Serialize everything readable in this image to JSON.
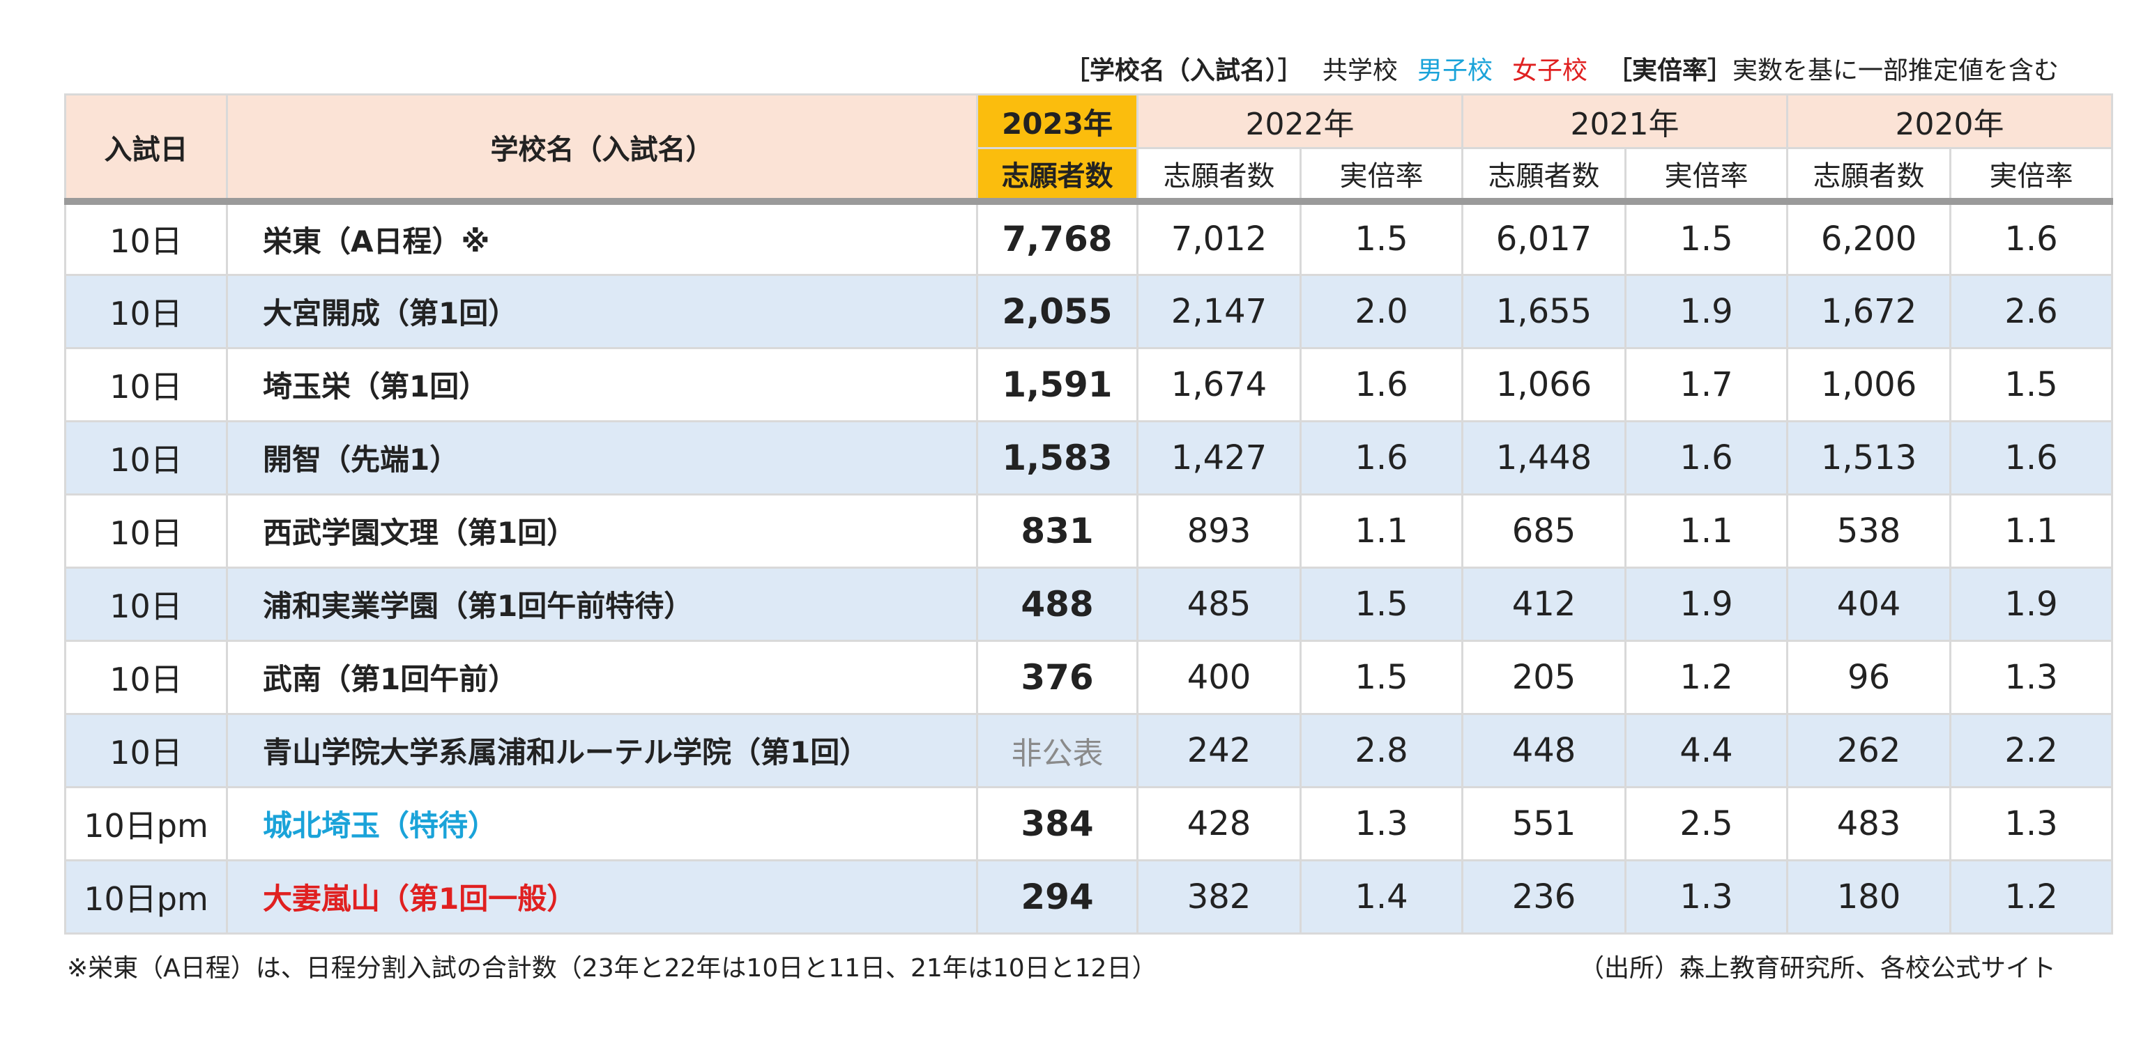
{
  "legend": {
    "school_name_label": "［学校名（入試名）］",
    "coed": "共学校",
    "boys": "男子校",
    "girls": "女子校",
    "ratio_label": "［実倍率］",
    "ratio_note": "実数を基に一部推定値を含む"
  },
  "header": {
    "date": "入試日",
    "school": "学校名（入試名）",
    "y2023": "2023年",
    "y2022": "2022年",
    "y2021": "2021年",
    "y2020": "2020年",
    "applicants": "志願者数",
    "ratio": "実倍率"
  },
  "rows": [
    {
      "date": "10日",
      "name": "栄東（A日程）※",
      "type": "coed",
      "a2023": "7,768",
      "a2022": "7,012",
      "r2022": "1.5",
      "a2021": "6,017",
      "r2021": "1.5",
      "a2020": "6,200",
      "r2020": "1.6"
    },
    {
      "date": "10日",
      "name": "大宮開成（第1回）",
      "type": "coed",
      "a2023": "2,055",
      "a2022": "2,147",
      "r2022": "2.0",
      "a2021": "1,655",
      "r2021": "1.9",
      "a2020": "1,672",
      "r2020": "2.6"
    },
    {
      "date": "10日",
      "name": "埼玉栄（第1回）",
      "type": "coed",
      "a2023": "1,591",
      "a2022": "1,674",
      "r2022": "1.6",
      "a2021": "1,066",
      "r2021": "1.7",
      "a2020": "1,006",
      "r2020": "1.5"
    },
    {
      "date": "10日",
      "name": "開智（先端1）",
      "type": "coed",
      "a2023": "1,583",
      "a2022": "1,427",
      "r2022": "1.6",
      "a2021": "1,448",
      "r2021": "1.6",
      "a2020": "1,513",
      "r2020": "1.6"
    },
    {
      "date": "10日",
      "name": "西武学園文理（第1回）",
      "type": "coed",
      "a2023": "831",
      "a2022": "893",
      "r2022": "1.1",
      "a2021": "685",
      "r2021": "1.1",
      "a2020": "538",
      "r2020": "1.1"
    },
    {
      "date": "10日",
      "name": "浦和実業学園（第1回午前特待）",
      "type": "coed",
      "a2023": "488",
      "a2022": "485",
      "r2022": "1.5",
      "a2021": "412",
      "r2021": "1.9",
      "a2020": "404",
      "r2020": "1.9"
    },
    {
      "date": "10日",
      "name": "武南（第1回午前）",
      "type": "coed",
      "a2023": "376",
      "a2022": "400",
      "r2022": "1.5",
      "a2021": "205",
      "r2021": "1.2",
      "a2020": "96",
      "r2020": "1.3"
    },
    {
      "date": "10日",
      "name": "青山学院大学系属浦和ルーテル学院（第1回）",
      "type": "coed",
      "a2023": "非公表",
      "a2022": "242",
      "r2022": "2.8",
      "a2021": "448",
      "r2021": "4.4",
      "a2020": "262",
      "r2020": "2.2"
    },
    {
      "date": "10日pm",
      "name": "城北埼玉（特待）",
      "type": "boys",
      "a2023": "384",
      "a2022": "428",
      "r2022": "1.3",
      "a2021": "551",
      "r2021": "2.5",
      "a2020": "483",
      "r2020": "1.3"
    },
    {
      "date": "10日pm",
      "name": "大妻嵐山（第1回一般）",
      "type": "girls",
      "a2023": "294",
      "a2022": "382",
      "r2022": "1.4",
      "a2021": "236",
      "r2021": "1.3",
      "a2020": "180",
      "r2020": "1.2"
    }
  ],
  "footnote": "※栄東（A日程）は、日程分割入試の合計数（23年と22年は10日と11日、21年は10日と12日）",
  "source": "（出所）森上教育研究所、各校公式サイト",
  "colors": {
    "boys": "#1aa3d9",
    "girls": "#e02020",
    "highlight_2023": "#fbbd0d",
    "header_bg": "#fbe3d6",
    "alt_row_bg": "#dde9f6"
  }
}
